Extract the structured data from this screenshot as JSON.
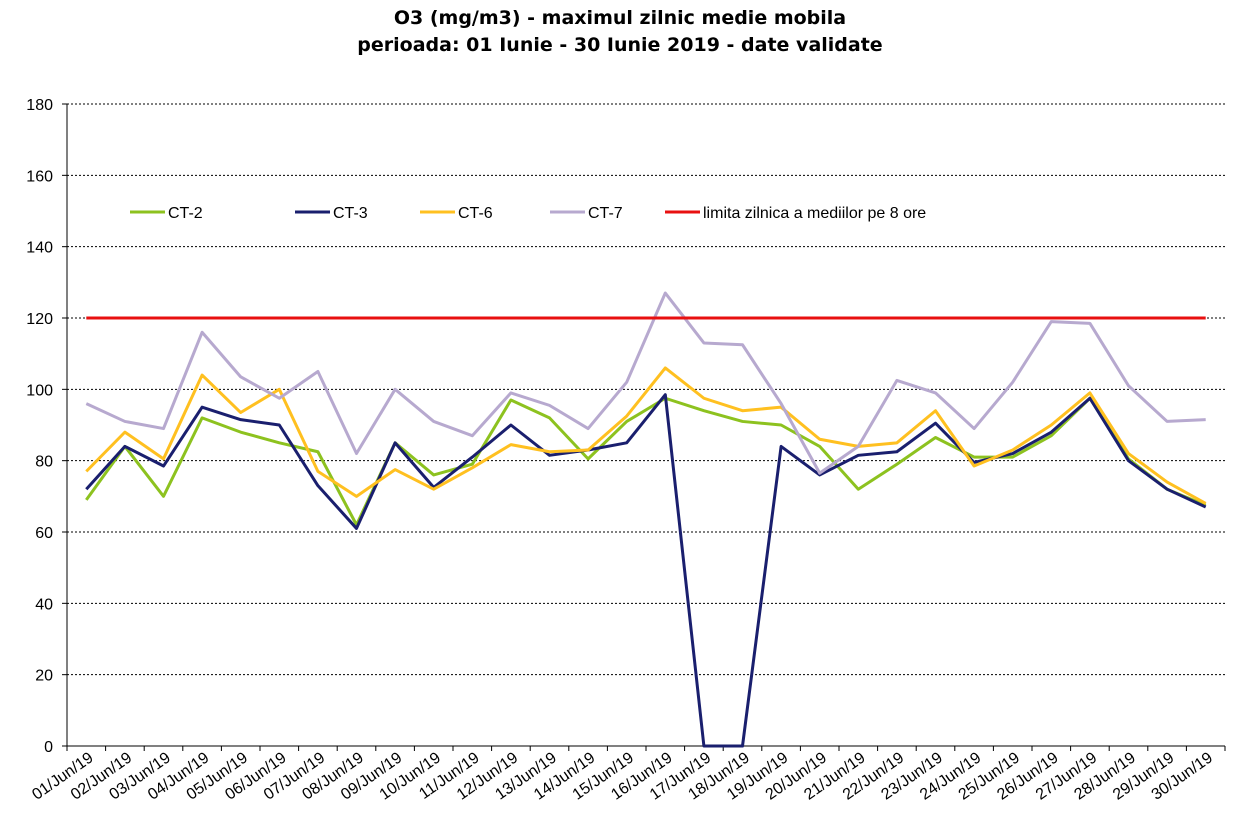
{
  "chart_data": {
    "type": "line",
    "title": "O3 (mg/m3) - maximul zilnic medie mobila",
    "subtitle": "perioada: 01 Iunie - 30 Iunie 2019 - date validate",
    "categories": [
      "01/Jun/19",
      "02/Jun/19",
      "03/Jun/19",
      "04/Jun/19",
      "05/Jun/19",
      "06/Jun/19",
      "07/Jun/19",
      "08/Jun/19",
      "09/Jun/19",
      "10/Jun/19",
      "11/Jun/19",
      "12/Jun/19",
      "13/Jun/19",
      "14/Jun/19",
      "15/Jun/19",
      "16/Jun/19",
      "17/Jun/19",
      "18/Jun/19",
      "19/Jun/19",
      "20/Jun/19",
      "21/Jun/19",
      "22/Jun/19",
      "23/Jun/19",
      "24/Jun/19",
      "25/Jun/19",
      "26/Jun/19",
      "27/Jun/19",
      "28/Jun/19",
      "29/Jun/19",
      "30/Jun/19"
    ],
    "series": [
      {
        "name": "CT-2",
        "color": "#8dc21f",
        "values": [
          69,
          84,
          70,
          92,
          88,
          85,
          82.5,
          62,
          85,
          76,
          79,
          97,
          92,
          80.5,
          91,
          97.5,
          94,
          91,
          90,
          84,
          72,
          79,
          86.5,
          81,
          81,
          87,
          97.5,
          80.5,
          72,
          67.5
        ]
      },
      {
        "name": "CT-3",
        "color": "#1a1f6e",
        "values": [
          72,
          84,
          78.5,
          95,
          91.5,
          90,
          73,
          61,
          85,
          72.5,
          81,
          90,
          81.5,
          83,
          85,
          98.5,
          0,
          0,
          84,
          76,
          81.5,
          82.5,
          90.5,
          79.5,
          82,
          88,
          97.5,
          80,
          72,
          67
        ]
      },
      {
        "name": "CT-6",
        "color": "#ffc020",
        "values": [
          77,
          88,
          80.5,
          104,
          93.5,
          100,
          77,
          70,
          77.5,
          72,
          78,
          84.5,
          82.5,
          83,
          92.5,
          106,
          97.5,
          94,
          95,
          86,
          84,
          85,
          94,
          78.5,
          83,
          90,
          99,
          82,
          74,
          68
        ]
      },
      {
        "name": "CT-7",
        "color": "#b7a9cf",
        "values": [
          96,
          91,
          89,
          116,
          103.5,
          97.5,
          105,
          82,
          100,
          91,
          87,
          99,
          95.5,
          89,
          102,
          127,
          113,
          112.5,
          96,
          76.5,
          84,
          102.5,
          99,
          89,
          102,
          119,
          118.5,
          101,
          91,
          91.5
        ]
      },
      {
        "name": "limita zilnica a mediilor pe 8 ore",
        "color": "#e81010",
        "values": [
          120,
          120,
          120,
          120,
          120,
          120,
          120,
          120,
          120,
          120,
          120,
          120,
          120,
          120,
          120,
          120,
          120,
          120,
          120,
          120,
          120,
          120,
          120,
          120,
          120,
          120,
          120,
          120,
          120,
          120
        ]
      }
    ],
    "ylim": [
      0,
      180
    ],
    "yticks": [
      0,
      20,
      40,
      60,
      80,
      100,
      120,
      140,
      160,
      180
    ],
    "grid": true,
    "legend": "upper left"
  }
}
